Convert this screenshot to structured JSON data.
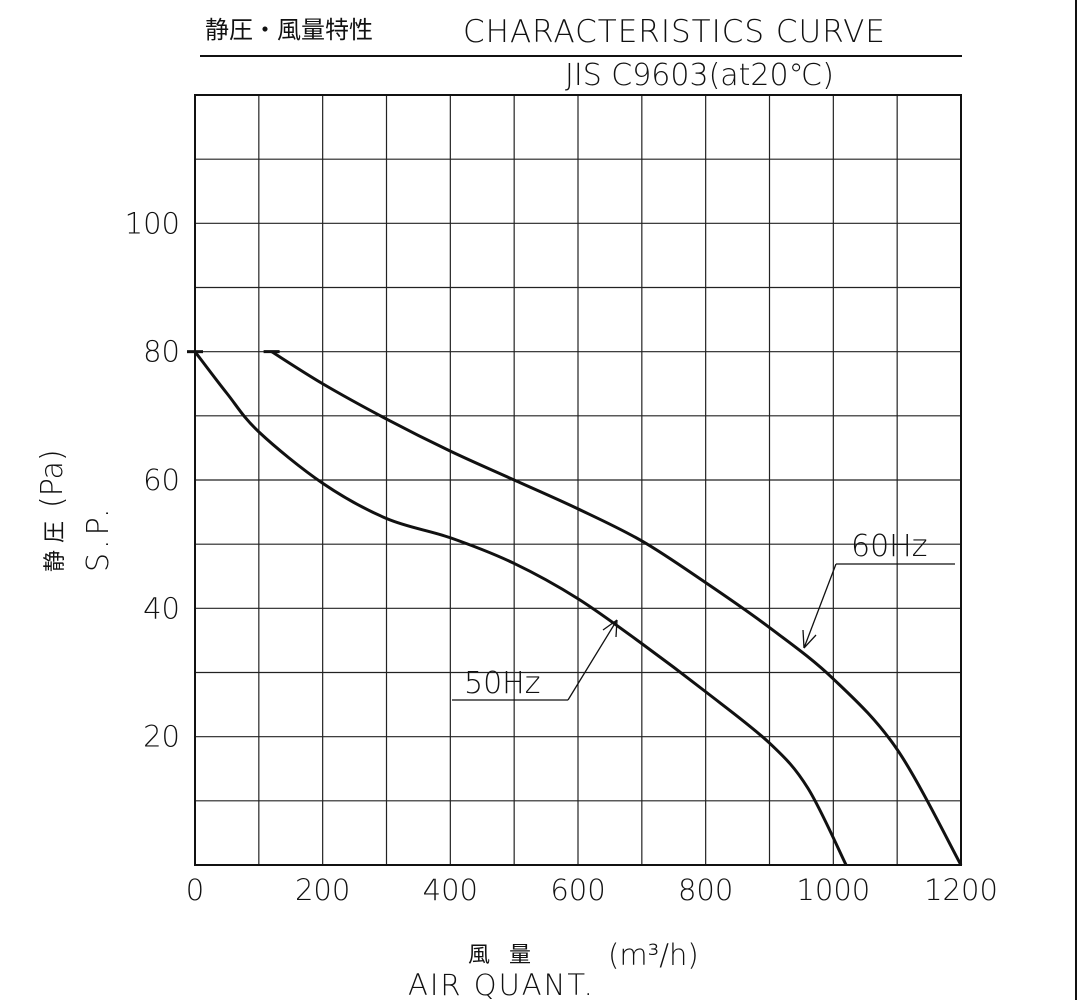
{
  "header": {
    "title_jp": "静圧・風量特性",
    "title_en": "CHARACTERISTICS CURVE",
    "standard": "JIS C9603(at20℃)"
  },
  "chart_data": {
    "type": "line",
    "title": "CHARACTERISTICS CURVE",
    "xlabel_jp": "風 量",
    "xlabel_unit": "(m³/h)",
    "xlabel_en": "AIR QUANT.",
    "ylabel_jp": "静 圧",
    "ylabel_unit": "(Pa)",
    "ylabel_en": "S.P.",
    "xlim": [
      0,
      1200
    ],
    "ylim": [
      0,
      120
    ],
    "x_ticks": [
      0,
      200,
      400,
      600,
      800,
      1000,
      1200
    ],
    "y_ticks": [
      20,
      40,
      60,
      80,
      100
    ],
    "x_tick_labels": [
      "0",
      "200",
      "400",
      "600",
      "800",
      "1000",
      "1200"
    ],
    "y_tick_labels": [
      "20",
      "40",
      "60",
      "80",
      "100"
    ],
    "grid": true,
    "series": [
      {
        "name": "60Hz",
        "x": [
          120,
          200,
          300,
          400,
          500,
          600,
          700,
          800,
          900,
          1000,
          1100,
          1200
        ],
        "y": [
          80,
          75,
          69.5,
          64.5,
          60,
          55.5,
          50.5,
          44,
          37,
          29,
          18,
          0
        ]
      },
      {
        "name": "50Hz",
        "x": [
          0,
          50,
          100,
          200,
          300,
          400,
          500,
          600,
          700,
          800,
          900,
          960,
          1020
        ],
        "y": [
          80,
          73.5,
          67.5,
          59.5,
          54,
          51,
          47,
          41.5,
          34.5,
          27,
          19,
          12,
          0
        ]
      }
    ],
    "annotations": [
      {
        "text": "60Hz",
        "series": "60Hz"
      },
      {
        "text": "50Hz",
        "series": "50Hz"
      }
    ]
  }
}
